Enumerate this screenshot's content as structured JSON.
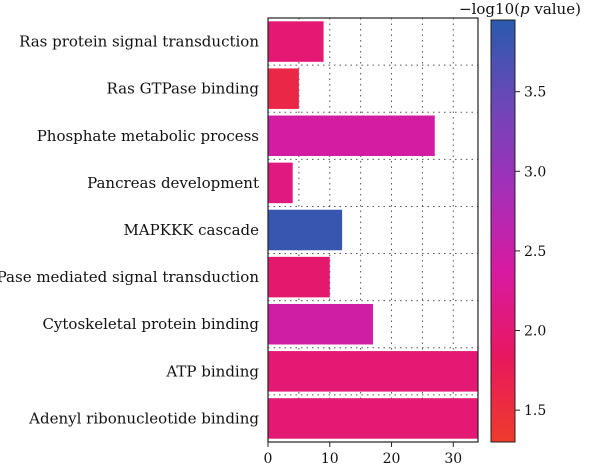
{
  "chart_data": {
    "type": "bar",
    "orientation": "horizontal",
    "categories": [
      "Ras protein signal transduction",
      "Ras GTPase binding",
      "Phosphate metabolic process",
      "Pancreas development",
      "MAPKKK cascade",
      "GTPase mediated signal transduction",
      "Cytoskeletal protein binding",
      "ATP binding",
      "Adenyl ribonucleotide binding"
    ],
    "values": [
      9,
      5,
      27,
      4,
      12,
      10,
      17,
      34,
      34
    ],
    "color_values": [
      2.0,
      1.6,
      2.4,
      2.1,
      3.85,
      1.95,
      2.45,
      2.0,
      2.0
    ],
    "xlim": [
      0,
      34
    ],
    "xticks": [
      "0",
      "10",
      "20",
      "30"
    ],
    "xtick_values": [
      0,
      10,
      20,
      30
    ],
    "grid": "dotted",
    "colorbar": {
      "title_prefix": "−log10(",
      "title_italic": "p",
      "title_suffix": " value)",
      "range": [
        1.3,
        3.95
      ],
      "ticks": [
        "1.5",
        "2.0",
        "2.5",
        "3.0",
        "3.5"
      ],
      "tick_values": [
        1.5,
        2.0,
        2.5,
        3.0,
        3.5
      ],
      "colors": [
        "#ef3b2c",
        "#e8185e",
        "#d81aa0",
        "#a42fb8",
        "#6d47b6",
        "#2a5aad"
      ]
    }
  }
}
